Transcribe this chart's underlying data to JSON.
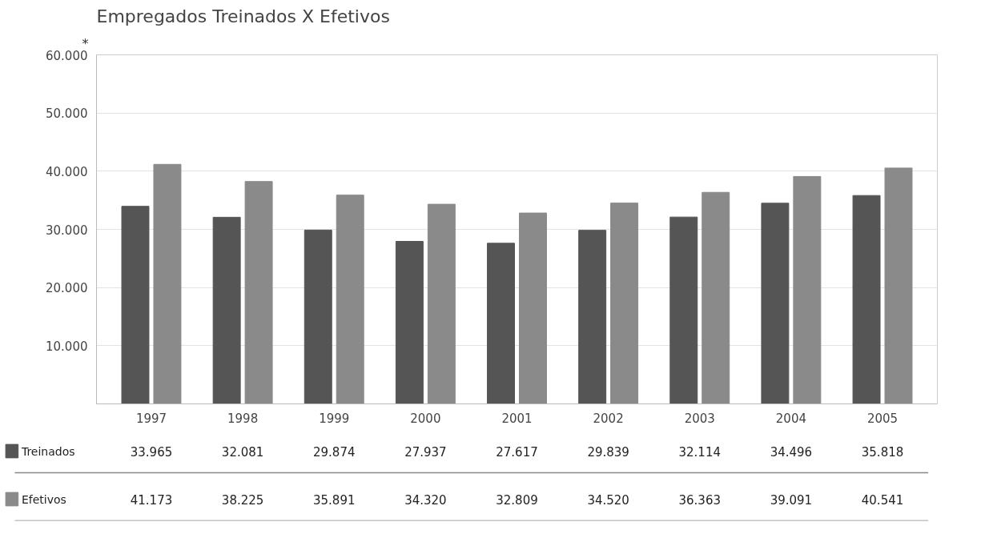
{
  "chart_data": {
    "type": "bar",
    "title": "Empregados Treinados X Efetivos",
    "categories": [
      "1997",
      "1998",
      "1999",
      "2000",
      "2001",
      "2002",
      "2003",
      "2004",
      "2005"
    ],
    "series": [
      {
        "name": "Treinados",
        "color": "#555555",
        "values": [
          33965,
          32081,
          29874,
          27937,
          27617,
          29839,
          32114,
          34496,
          35818
        ],
        "value_labels": [
          "33.965",
          "32.081",
          "29.874",
          "27.937",
          "27.617",
          "29.839",
          "32.114",
          "34.496",
          "35.818"
        ]
      },
      {
        "name": "Efetivos",
        "color": "#8a8a8a",
        "values": [
          41173,
          38225,
          35891,
          34320,
          32809,
          34520,
          36363,
          39091,
          40541
        ],
        "value_labels": [
          "41.173",
          "38.225",
          "35.891",
          "34.320",
          "32.809",
          "34.520",
          "36.363",
          "39.091",
          "40.541"
        ]
      }
    ],
    "ylim": [
      0,
      60000
    ],
    "yticks": [
      {
        "value": 10000,
        "label": "10.000"
      },
      {
        "value": 20000,
        "label": "20.000"
      },
      {
        "value": 30000,
        "label": "30.000"
      },
      {
        "value": 40000,
        "label": "40.000"
      },
      {
        "value": 50000,
        "label": "50.000"
      },
      {
        "value": 60000,
        "label": "60.000"
      }
    ],
    "grid": "y",
    "legend": "bottom",
    "annotations": [
      "*"
    ]
  }
}
